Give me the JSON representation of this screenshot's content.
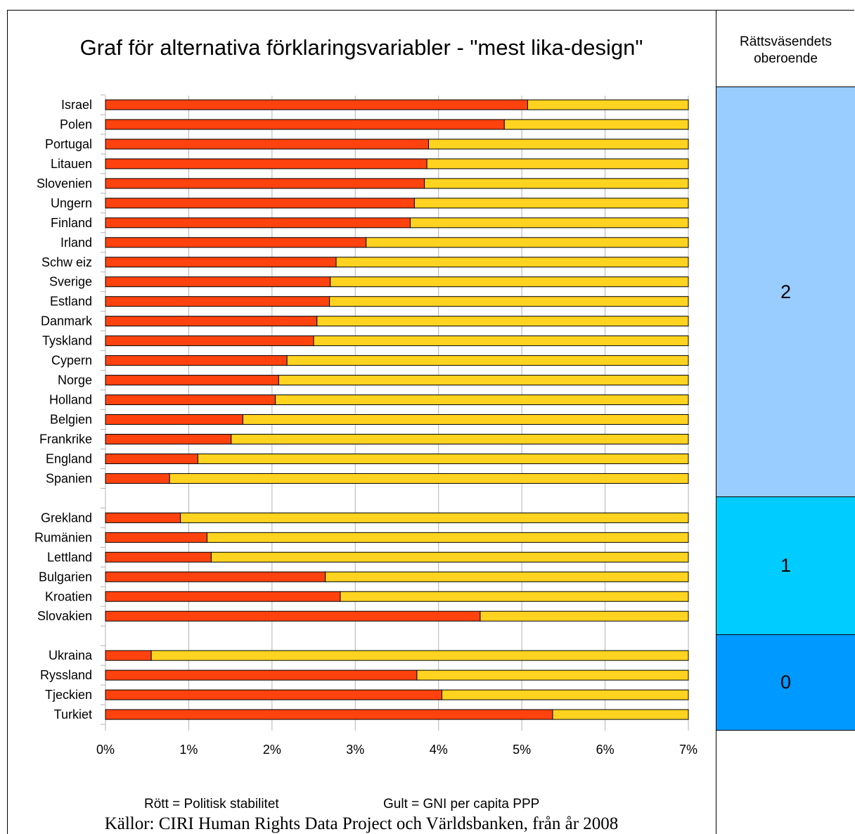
{
  "title": "Graf för alternativa förklaringsvariabler - \"mest lika-design\"",
  "legend": {
    "red": "Rött = Politisk stabilitet",
    "yellow": "Gult = GNI per capita PPP"
  },
  "source": "Källor: CIRI Human Rights Data Project och Världsbanken, från år 2008",
  "side_panel": {
    "header": "Rättsväsendets oberoende",
    "groups": [
      {
        "label": "2",
        "color": "#99ccff"
      },
      {
        "label": "1",
        "color": "#00ccff"
      },
      {
        "label": "0",
        "color": "#0099ff"
      }
    ]
  },
  "colors": {
    "red": "#ff420e",
    "yellow": "#ffd320"
  },
  "chart_data": {
    "type": "bar",
    "orientation": "horizontal",
    "stacked": true,
    "xlim": [
      0,
      7
    ],
    "x_ticks": [
      "0%",
      "1%",
      "2%",
      "3%",
      "4%",
      "5%",
      "6%",
      "7%"
    ],
    "grid": true,
    "series": [
      {
        "key": "red",
        "color": "#ff420e"
      },
      {
        "key": "yellow",
        "color": "#ffd320"
      }
    ],
    "groups": [
      {
        "group": "2",
        "rows": [
          {
            "country": "Israel",
            "red": 5.07,
            "yellow": 1.93
          },
          {
            "country": "Polen",
            "red": 4.79,
            "yellow": 2.21
          },
          {
            "country": "Portugal",
            "red": 3.88,
            "yellow": 3.12
          },
          {
            "country": "Litauen",
            "red": 3.86,
            "yellow": 3.14
          },
          {
            "country": "Slovenien",
            "red": 3.83,
            "yellow": 3.17
          },
          {
            "country": "Ungern",
            "red": 3.71,
            "yellow": 3.29
          },
          {
            "country": "Finland",
            "red": 3.66,
            "yellow": 3.34
          },
          {
            "country": "Irland",
            "red": 3.13,
            "yellow": 3.87
          },
          {
            "country": "Schw eiz",
            "red": 2.77,
            "yellow": 4.23
          },
          {
            "country": "Sverige",
            "red": 2.7,
            "yellow": 4.3
          },
          {
            "country": "Estland",
            "red": 2.69,
            "yellow": 4.31
          },
          {
            "country": "Danmark",
            "red": 2.54,
            "yellow": 4.46
          },
          {
            "country": "Tyskland",
            "red": 2.5,
            "yellow": 4.5
          },
          {
            "country": "Cypern",
            "red": 2.18,
            "yellow": 4.82
          },
          {
            "country": "Norge",
            "red": 2.08,
            "yellow": 4.92
          },
          {
            "country": "Holland",
            "red": 2.04,
            "yellow": 4.96
          },
          {
            "country": "Belgien",
            "red": 1.65,
            "yellow": 5.35
          },
          {
            "country": "Frankrike",
            "red": 1.51,
            "yellow": 5.49
          },
          {
            "country": "England",
            "red": 1.11,
            "yellow": 5.89
          },
          {
            "country": "Spanien",
            "red": 0.77,
            "yellow": 6.23
          }
        ]
      },
      {
        "group": "1",
        "rows": [
          {
            "country": "Grekland",
            "red": 0.9,
            "yellow": 6.1
          },
          {
            "country": "Rumänien",
            "red": 1.22,
            "yellow": 5.78
          },
          {
            "country": "Lettland",
            "red": 1.27,
            "yellow": 5.73
          },
          {
            "country": "Bulgarien",
            "red": 2.64,
            "yellow": 4.36
          },
          {
            "country": "Kroatien",
            "red": 2.82,
            "yellow": 4.18
          },
          {
            "country": "Slovakien",
            "red": 4.5,
            "yellow": 2.5
          }
        ]
      },
      {
        "group": "0",
        "rows": [
          {
            "country": "Ukraina",
            "red": 0.55,
            "yellow": 6.45
          },
          {
            "country": "Ryssland",
            "red": 3.74,
            "yellow": 3.26
          },
          {
            "country": "Tjeckien",
            "red": 4.04,
            "yellow": 2.96
          },
          {
            "country": "Turkiet",
            "red": 5.37,
            "yellow": 1.63
          }
        ]
      }
    ]
  }
}
